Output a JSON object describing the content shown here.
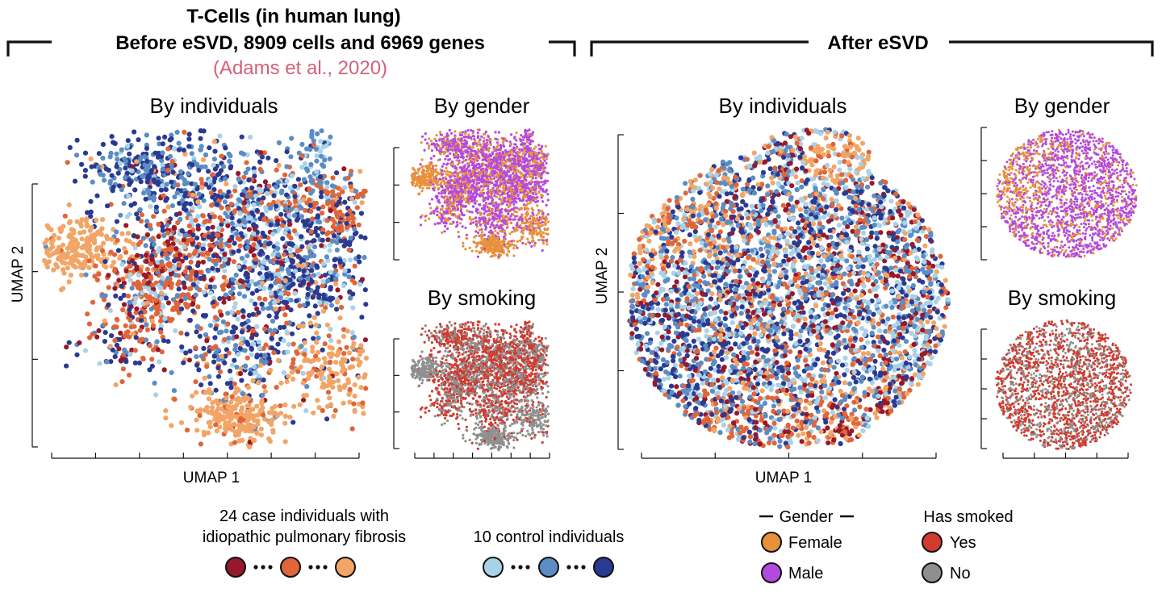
{
  "header": {
    "left_title_1": "T-Cells (in human lung)",
    "left_title_2": "Before eSVD, 8909 cells and 6969 genes",
    "citation": "(Adams et al., 2020)",
    "right_title": "After eSVD"
  },
  "colors": {
    "case_dark": "#96192b",
    "case_mid": "#e0653a",
    "case_light": "#f2a566",
    "control_light": "#a9d2e8",
    "control_mid": "#5b8dc4",
    "control_dark": "#2a3a92",
    "female": "#e8913a",
    "male": "#b449e0",
    "smoked_yes": "#d13a2e",
    "smoked_no": "#8f8f8f"
  },
  "chart_data": [
    {
      "type": "scatter",
      "panel": "before-individuals",
      "title": "By individuals",
      "xlabel": "UMAP 1",
      "ylabel": "UMAP 2",
      "color_by": "individual",
      "cells": 8909
    },
    {
      "type": "scatter",
      "panel": "before-gender",
      "title": "By gender",
      "xlabel": "",
      "ylabel": "",
      "color_by": "gender"
    },
    {
      "type": "scatter",
      "panel": "before-smoking",
      "title": "By smoking",
      "xlabel": "",
      "ylabel": "",
      "color_by": "smoking"
    },
    {
      "type": "scatter",
      "panel": "after-individuals",
      "title": "By individuals",
      "xlabel": "UMAP 1",
      "ylabel": "UMAP 2",
      "color_by": "individual"
    },
    {
      "type": "scatter",
      "panel": "after-gender",
      "title": "By gender",
      "xlabel": "",
      "ylabel": "",
      "color_by": "gender"
    },
    {
      "type": "scatter",
      "panel": "after-smoking",
      "title": "By smoking",
      "xlabel": "",
      "ylabel": "",
      "color_by": "smoking"
    }
  ],
  "legend": {
    "case_label_1": "24 case individuals with",
    "case_label_2": "idiopathic pulmonary fibrosis",
    "case_count": 24,
    "control_label": "10 control individuals",
    "control_count": 10,
    "gender_title": "Gender",
    "gender_female": "Female",
    "gender_male": "Male",
    "smoke_title": "Has smoked",
    "smoke_yes": "Yes",
    "smoke_no": "No"
  }
}
